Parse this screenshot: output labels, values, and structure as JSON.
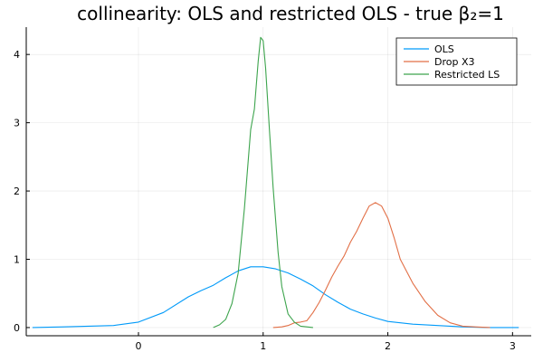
{
  "chart_data": {
    "type": "line",
    "title": "collinearity: OLS and restricted OLS - true β₂=1",
    "xlabel": "",
    "ylabel": "",
    "xlim": [
      -0.9,
      3.15
    ],
    "ylim": [
      -0.12,
      4.4
    ],
    "xticks": [
      0,
      1,
      2,
      3
    ],
    "yticks": [
      0,
      1,
      2,
      3,
      4
    ],
    "grid": true,
    "legend_position": "top-right",
    "series": [
      {
        "name": "OLS",
        "color": "#009af9",
        "x": [
          -0.85,
          -0.6,
          -0.4,
          -0.2,
          0.0,
          0.2,
          0.4,
          0.5,
          0.6,
          0.7,
          0.8,
          0.9,
          1.0,
          1.1,
          1.2,
          1.3,
          1.4,
          1.5,
          1.6,
          1.7,
          1.8,
          1.9,
          2.0,
          2.2,
          2.4,
          2.6,
          2.8,
          3.05
        ],
        "y": [
          0.0,
          0.01,
          0.02,
          0.03,
          0.08,
          0.22,
          0.45,
          0.54,
          0.62,
          0.73,
          0.83,
          0.89,
          0.89,
          0.86,
          0.8,
          0.71,
          0.61,
          0.48,
          0.37,
          0.27,
          0.2,
          0.14,
          0.09,
          0.05,
          0.03,
          0.01,
          0.0,
          0.0
        ]
      },
      {
        "name": "Drop X3",
        "color": "#e26f46",
        "x": [
          1.08,
          1.15,
          1.2,
          1.25,
          1.3,
          1.35,
          1.4,
          1.45,
          1.5,
          1.55,
          1.6,
          1.65,
          1.7,
          1.75,
          1.8,
          1.85,
          1.9,
          1.95,
          2.0,
          2.05,
          2.1,
          2.2,
          2.3,
          2.4,
          2.5,
          2.6,
          2.7,
          2.82
        ],
        "y": [
          0.0,
          0.01,
          0.03,
          0.07,
          0.08,
          0.1,
          0.22,
          0.37,
          0.55,
          0.74,
          0.9,
          1.05,
          1.25,
          1.41,
          1.6,
          1.78,
          1.83,
          1.78,
          1.6,
          1.32,
          1.0,
          0.65,
          0.38,
          0.18,
          0.07,
          0.02,
          0.01,
          0.0
        ]
      },
      {
        "name": "Restricted LS",
        "color": "#3da44d",
        "x": [
          0.6,
          0.65,
          0.7,
          0.75,
          0.8,
          0.85,
          0.9,
          0.93,
          0.96,
          0.98,
          1.0,
          1.02,
          1.05,
          1.08,
          1.12,
          1.15,
          1.2,
          1.25,
          1.3,
          1.4
        ],
        "y": [
          0.0,
          0.04,
          0.12,
          0.35,
          0.8,
          1.75,
          2.9,
          3.2,
          3.9,
          4.25,
          4.2,
          3.8,
          2.9,
          2.05,
          1.1,
          0.6,
          0.2,
          0.08,
          0.02,
          0.0
        ]
      }
    ]
  }
}
